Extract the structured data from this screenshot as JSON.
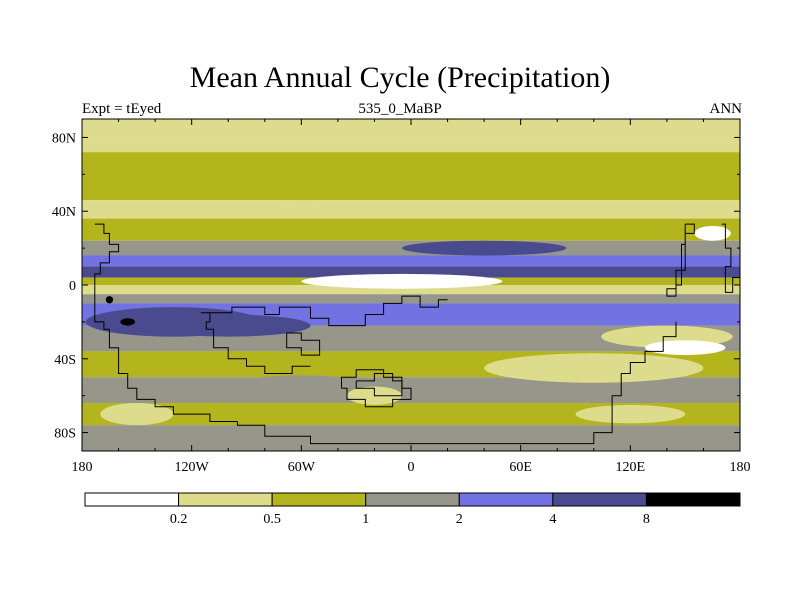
{
  "chart_data": {
    "type": "heatmap",
    "title": "Mean Annual Cycle (Precipitation)",
    "left_string": "Expt = tEyed",
    "center_string": "535_0_MaBP",
    "right_string": "ANN",
    "x_ticks": [
      {
        "value": -180,
        "label": "180"
      },
      {
        "value": -120,
        "label": "120W"
      },
      {
        "value": -60,
        "label": "60W"
      },
      {
        "value": 0,
        "label": "0"
      },
      {
        "value": 60,
        "label": "60E"
      },
      {
        "value": 120,
        "label": "120E"
      },
      {
        "value": 180,
        "label": "180"
      }
    ],
    "y_ticks": [
      {
        "value": 80,
        "label": "80N"
      },
      {
        "value": 40,
        "label": "40N"
      },
      {
        "value": 0,
        "label": "0"
      },
      {
        "value": -40,
        "label": "40S"
      },
      {
        "value": -80,
        "label": "80S"
      }
    ],
    "xlim": [
      -180,
      180
    ],
    "ylim": [
      -90,
      90
    ],
    "contour_levels": [
      0.2,
      0.5,
      1,
      2,
      4,
      8
    ],
    "level_labels": [
      "0.2",
      "0.5",
      "1",
      "2",
      "4",
      "8"
    ],
    "palette": [
      "#ffffff",
      "#dcdc8c",
      "#b4b41c",
      "#96968a",
      "#7272e2",
      "#4a4a8e",
      "#000000"
    ],
    "zonal_bands": [
      {
        "lat_max": 90,
        "lat_min": 80,
        "level": 1
      },
      {
        "lat_max": 80,
        "lat_min": 72,
        "level": 1
      },
      {
        "lat_max": 72,
        "lat_min": 46,
        "level": 2
      },
      {
        "lat_max": 46,
        "lat_min": 36,
        "level": 1
      },
      {
        "lat_max": 36,
        "lat_min": 24,
        "level": 2
      },
      {
        "lat_max": 24,
        "lat_min": 16,
        "level": 3
      },
      {
        "lat_max": 16,
        "lat_min": 10,
        "level": 4
      },
      {
        "lat_max": 10,
        "lat_min": 4,
        "level": 5
      },
      {
        "lat_max": 4,
        "lat_min": 0,
        "level": 2
      },
      {
        "lat_max": 0,
        "lat_min": -5,
        "level": 1
      },
      {
        "lat_max": -5,
        "lat_min": -10,
        "level": 3
      },
      {
        "lat_max": -10,
        "lat_min": -22,
        "level": 4
      },
      {
        "lat_max": -22,
        "lat_min": -36,
        "level": 3
      },
      {
        "lat_max": -36,
        "lat_min": -50,
        "level": 2
      },
      {
        "lat_max": -50,
        "lat_min": -64,
        "level": 3
      },
      {
        "lat_max": -64,
        "lat_min": -76,
        "level": 2
      },
      {
        "lat_max": -76,
        "lat_min": -90,
        "level": 3
      }
    ],
    "features": [
      {
        "lon": -5,
        "lat": 2,
        "rlon": 55,
        "rlat": 4,
        "level": 0
      },
      {
        "lon": -5,
        "lat": 2,
        "rlon": 28,
        "rlat": 2,
        "level": 0
      },
      {
        "lon": 140,
        "lat": -28,
        "rlon": 36,
        "rlat": 6,
        "level": 1
      },
      {
        "lon": 150,
        "lat": -34,
        "rlon": 22,
        "rlat": 4,
        "level": 0
      },
      {
        "lon": -130,
        "lat": -20,
        "rlon": 48,
        "rlat": 8,
        "level": 5
      },
      {
        "lon": -100,
        "lat": -22,
        "rlon": 45,
        "rlat": 6,
        "level": 5
      },
      {
        "lon": -155,
        "lat": -20,
        "rlon": 4,
        "rlat": 2,
        "level": 6
      },
      {
        "lon": -165,
        "lat": -8,
        "rlon": 2,
        "rlat": 2,
        "level": 6
      },
      {
        "lon": 40,
        "lat": 20,
        "rlon": 45,
        "rlat": 4,
        "level": 5
      },
      {
        "lon": -60,
        "lat": -55,
        "rlon": 40,
        "rlat": 6,
        "level": 3
      },
      {
        "lon": 100,
        "lat": -45,
        "rlon": 60,
        "rlat": 8,
        "level": 1
      },
      {
        "lon": -20,
        "lat": -60,
        "rlon": 15,
        "rlat": 5,
        "level": 1
      },
      {
        "lon": 165,
        "lat": 28,
        "rlon": 10,
        "rlat": 4,
        "level": 0
      },
      {
        "lon": -60,
        "lat": 43,
        "rlon": 45,
        "rlat": 3,
        "level": 1
      },
      {
        "lon": 120,
        "lat": -70,
        "rlon": 30,
        "rlat": 5,
        "level": 1
      },
      {
        "lon": -150,
        "lat": -70,
        "rlon": 20,
        "rlat": 6,
        "level": 1
      }
    ],
    "coastlines": [
      [
        [
          -173,
          33
        ],
        [
          -168,
          33
        ],
        [
          -168,
          28
        ],
        [
          -165,
          28
        ],
        [
          -165,
          22
        ],
        [
          -160,
          22
        ],
        [
          -160,
          18
        ],
        [
          -165,
          18
        ],
        [
          -165,
          12
        ],
        [
          -170,
          12
        ],
        [
          -170,
          6
        ],
        [
          -173,
          6
        ],
        [
          -173,
          -20
        ],
        [
          -168,
          -20
        ],
        [
          -168,
          -24
        ],
        [
          -165,
          -24
        ],
        [
          -165,
          -34
        ],
        [
          -160,
          -34
        ],
        [
          -160,
          -48
        ],
        [
          -155,
          -48
        ],
        [
          -155,
          -56
        ],
        [
          -150,
          -56
        ],
        [
          -150,
          -62
        ],
        [
          -140,
          -62
        ],
        [
          -140,
          -66
        ],
        [
          -130,
          -66
        ],
        [
          -130,
          -70
        ],
        [
          -110,
          -70
        ],
        [
          -110,
          -74
        ],
        [
          -95,
          -74
        ],
        [
          -95,
          -76
        ],
        [
          -80,
          -76
        ],
        [
          -80,
          -82
        ],
        [
          -55,
          -82
        ],
        [
          -55,
          -86
        ],
        [
          100,
          -86
        ],
        [
          100,
          -80
        ],
        [
          110,
          -80
        ],
        [
          110,
          -60
        ],
        [
          115,
          -60
        ],
        [
          115,
          -48
        ],
        [
          120,
          -48
        ],
        [
          120,
          -42
        ],
        [
          128,
          -42
        ],
        [
          128,
          -36
        ],
        [
          138,
          -36
        ],
        [
          138,
          -28
        ],
        [
          145,
          -28
        ],
        [
          145,
          -20
        ]
      ],
      [
        [
          -115,
          -15
        ],
        [
          -98,
          -15
        ],
        [
          -98,
          -12
        ],
        [
          -80,
          -12
        ],
        [
          -80,
          -16
        ],
        [
          -72,
          -16
        ],
        [
          -72,
          -12
        ],
        [
          -55,
          -12
        ],
        [
          -55,
          -18
        ],
        [
          -45,
          -18
        ],
        [
          -45,
          -22
        ],
        [
          -25,
          -22
        ],
        [
          -25,
          -16
        ],
        [
          -15,
          -16
        ],
        [
          -15,
          -10
        ],
        [
          -5,
          -10
        ],
        [
          -5,
          -6
        ],
        [
          5,
          -6
        ],
        [
          5,
          -12
        ],
        [
          15,
          -12
        ],
        [
          15,
          -8
        ],
        [
          20,
          -8
        ]
      ],
      [
        [
          -110,
          -15
        ],
        [
          -110,
          -20
        ],
        [
          -112,
          -20
        ],
        [
          -112,
          -24
        ],
        [
          -108,
          -24
        ],
        [
          -108,
          -34
        ],
        [
          -100,
          -34
        ],
        [
          -100,
          -40
        ],
        [
          -90,
          -40
        ],
        [
          -90,
          -44
        ],
        [
          -80,
          -44
        ],
        [
          -80,
          -48
        ],
        [
          -65,
          -48
        ],
        [
          -65,
          -44
        ],
        [
          -55,
          -44
        ]
      ],
      [
        [
          -68,
          -28
        ],
        [
          -68,
          -34
        ],
        [
          -60,
          -34
        ],
        [
          -60,
          -38
        ],
        [
          -50,
          -38
        ],
        [
          -50,
          -30
        ],
        [
          -60,
          -30
        ],
        [
          -60,
          -26
        ],
        [
          -68,
          -26
        ],
        [
          -68,
          -28
        ]
      ],
      [
        [
          -38,
          -56
        ],
        [
          -38,
          -50
        ],
        [
          -30,
          -50
        ],
        [
          -30,
          -46
        ],
        [
          -15,
          -46
        ],
        [
          -15,
          -50
        ],
        [
          -5,
          -50
        ],
        [
          -5,
          -56
        ],
        [
          0,
          -56
        ],
        [
          0,
          -62
        ],
        [
          -10,
          -62
        ],
        [
          -10,
          -66
        ],
        [
          -25,
          -66
        ],
        [
          -25,
          -62
        ],
        [
          -35,
          -62
        ],
        [
          -35,
          -56
        ],
        [
          -38,
          -56
        ]
      ],
      [
        [
          -30,
          -52
        ],
        [
          -20,
          -52
        ],
        [
          -20,
          -48
        ],
        [
          -10,
          -48
        ],
        [
          -10,
          -52
        ],
        [
          -5,
          -52
        ],
        [
          -5,
          -60
        ],
        [
          -20,
          -60
        ],
        [
          -20,
          -56
        ],
        [
          -30,
          -56
        ],
        [
          -30,
          -52
        ]
      ],
      [
        [
          150,
          33
        ],
        [
          150,
          8
        ],
        [
          145,
          8
        ],
        [
          145,
          -2
        ],
        [
          140,
          -2
        ],
        [
          140,
          -6
        ],
        [
          145,
          -6
        ],
        [
          145,
          0
        ],
        [
          148,
          0
        ],
        [
          148,
          22
        ],
        [
          150,
          22
        ],
        [
          150,
          28
        ],
        [
          155,
          28
        ],
        [
          155,
          33
        ],
        [
          150,
          33
        ]
      ],
      [
        [
          170,
          33
        ],
        [
          172,
          33
        ],
        [
          172,
          20
        ],
        [
          175,
          20
        ],
        [
          175,
          10
        ],
        [
          172,
          10
        ],
        [
          172,
          -4
        ],
        [
          176,
          -4
        ],
        [
          176,
          4
        ],
        [
          180,
          4
        ]
      ],
      [
        [
          145,
          -20
        ],
        [
          145,
          -28
        ]
      ]
    ]
  }
}
